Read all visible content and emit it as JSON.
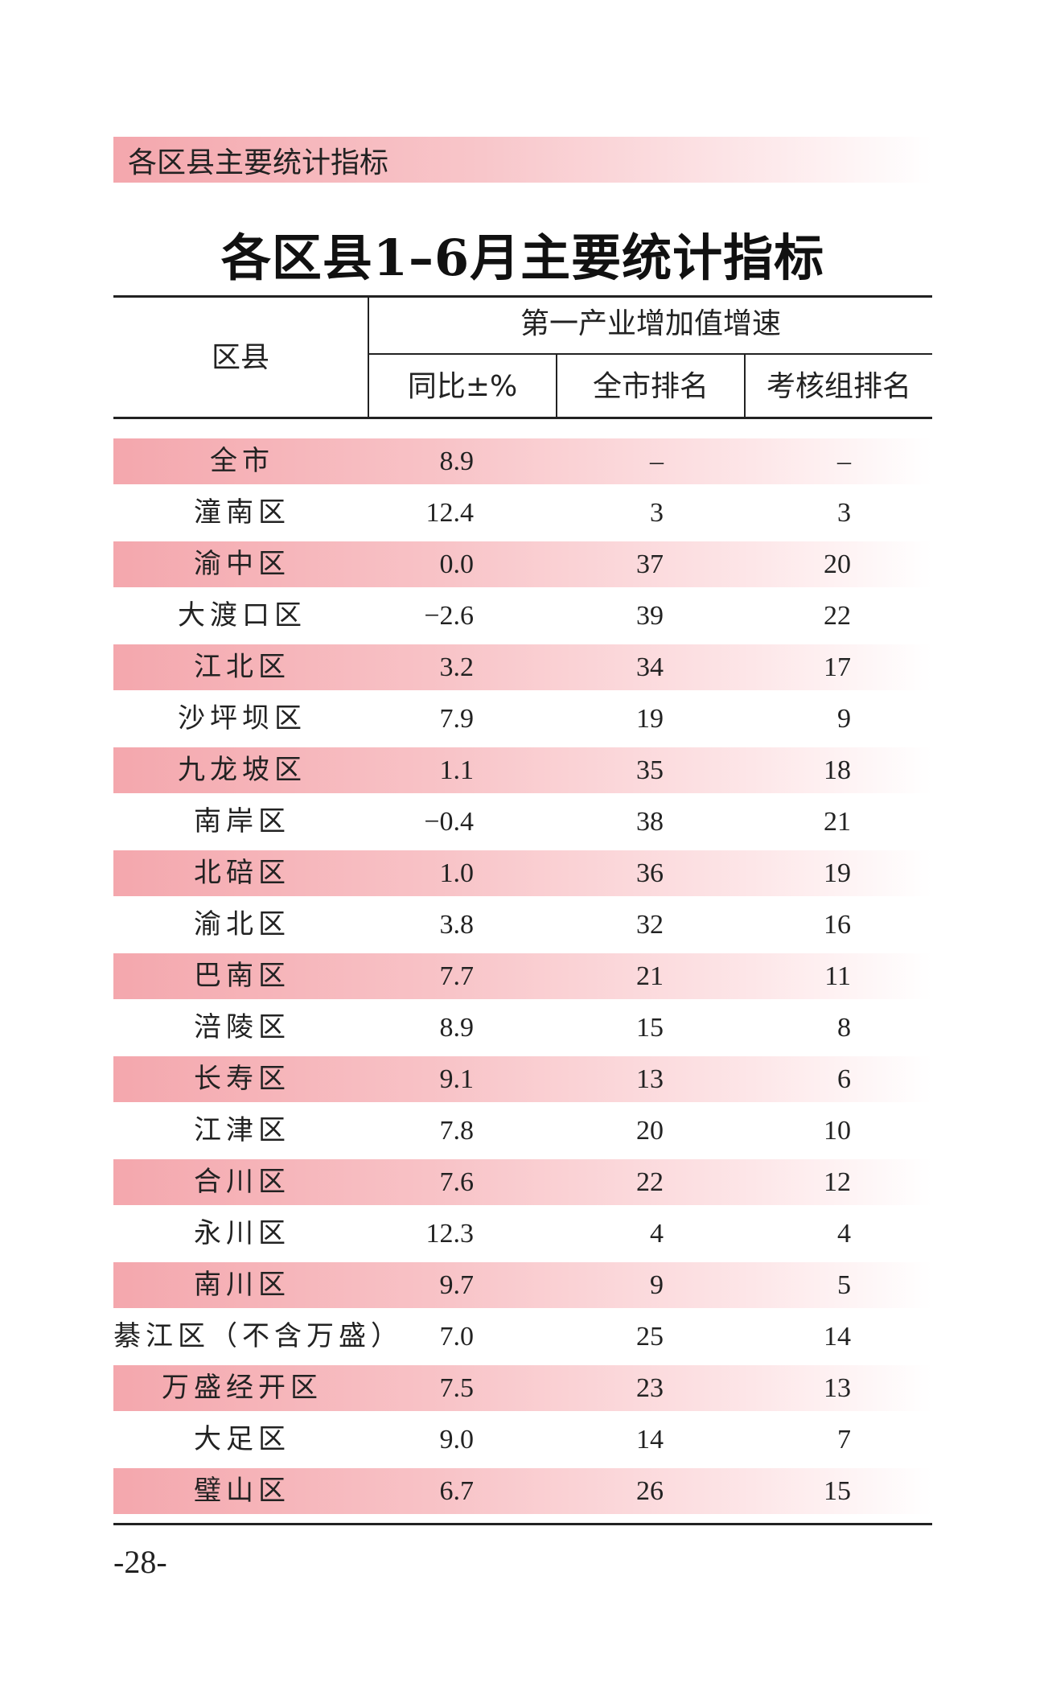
{
  "section_label": "各区县主要统计指标",
  "title": "各区县1–6月主要统计指标",
  "header": {
    "district": "区县",
    "group": "第一产业增加值增速",
    "yoy": "同比±%",
    "city_rank": "全市排名",
    "group_rank": "考核组排名"
  },
  "rows": [
    {
      "name": "全市",
      "yoy": "8.9",
      "city_rank": "–",
      "group_rank": "–"
    },
    {
      "name": "潼南区",
      "yoy": "12.4",
      "city_rank": "3",
      "group_rank": "3"
    },
    {
      "name": "渝中区",
      "yoy": "0.0",
      "city_rank": "37",
      "group_rank": "20"
    },
    {
      "name": "大渡口区",
      "yoy": "−2.6",
      "city_rank": "39",
      "group_rank": "22"
    },
    {
      "name": "江北区",
      "yoy": "3.2",
      "city_rank": "34",
      "group_rank": "17"
    },
    {
      "name": "沙坪坝区",
      "yoy": "7.9",
      "city_rank": "19",
      "group_rank": "9"
    },
    {
      "name": "九龙坡区",
      "yoy": "1.1",
      "city_rank": "35",
      "group_rank": "18"
    },
    {
      "name": "南岸区",
      "yoy": "−0.4",
      "city_rank": "38",
      "group_rank": "21"
    },
    {
      "name": "北碚区",
      "yoy": "1.0",
      "city_rank": "36",
      "group_rank": "19"
    },
    {
      "name": "渝北区",
      "yoy": "3.8",
      "city_rank": "32",
      "group_rank": "16"
    },
    {
      "name": "巴南区",
      "yoy": "7.7",
      "city_rank": "21",
      "group_rank": "11"
    },
    {
      "name": "涪陵区",
      "yoy": "8.9",
      "city_rank": "15",
      "group_rank": "8"
    },
    {
      "name": "长寿区",
      "yoy": "9.1",
      "city_rank": "13",
      "group_rank": "6"
    },
    {
      "name": "江津区",
      "yoy": "7.8",
      "city_rank": "20",
      "group_rank": "10"
    },
    {
      "name": "合川区",
      "yoy": "7.6",
      "city_rank": "22",
      "group_rank": "12"
    },
    {
      "name": "永川区",
      "yoy": "12.3",
      "city_rank": "4",
      "group_rank": "4"
    },
    {
      "name": "南川区",
      "yoy": "9.7",
      "city_rank": "9",
      "group_rank": "5"
    },
    {
      "name": "綦江区（不含万盛）",
      "yoy": "7.0",
      "city_rank": "25",
      "group_rank": "14"
    },
    {
      "name": "万盛经开区",
      "yoy": "7.5",
      "city_rank": "23",
      "group_rank": "13"
    },
    {
      "name": "大足区",
      "yoy": "9.0",
      "city_rank": "14",
      "group_rank": "7"
    },
    {
      "name": "璧山区",
      "yoy": "6.7",
      "city_rank": "26",
      "group_rank": "15"
    }
  ],
  "page_number": "-28-"
}
